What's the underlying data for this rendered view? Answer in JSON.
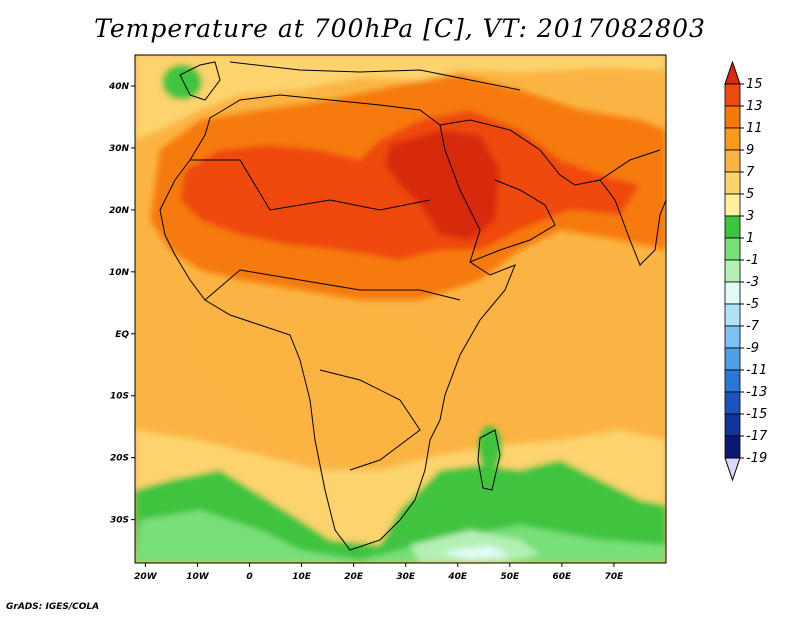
{
  "title": "Temperature at 700hPa [C], VT: 2017082803",
  "footer": "GrADS: IGES/COLA",
  "map": {
    "lon_range": [
      -22,
      80
    ],
    "lat_range": [
      -37,
      45
    ],
    "lon_ticks": [
      "20W",
      "10W",
      "0",
      "10E",
      "20E",
      "30E",
      "40E",
      "50E",
      "60E",
      "70E"
    ],
    "lat_ticks": [
      "40N",
      "30N",
      "20N",
      "10N",
      "EQ",
      "10S",
      "20S",
      "30S"
    ]
  },
  "colorbar": {
    "labels": [
      "15",
      "13",
      "11",
      "9",
      "7",
      "5",
      "3",
      "1",
      "-1",
      "-3",
      "-5",
      "-7",
      "-9",
      "-11",
      "-13",
      "-15",
      "-17",
      "-19"
    ],
    "colors": [
      "#d72a10",
      "#ef4a10",
      "#f67a0a",
      "#f99a1a",
      "#fbb443",
      "#fcd36d",
      "#fef0a0",
      "#3fc43f",
      "#79df79",
      "#b4f0b4",
      "#e0fbf5",
      "#b0e2f8",
      "#7ec1f2",
      "#509ee8",
      "#2b77d8",
      "#1a55bf",
      "#10349c",
      "#0a1a72",
      "#dcd7f8"
    ]
  }
}
